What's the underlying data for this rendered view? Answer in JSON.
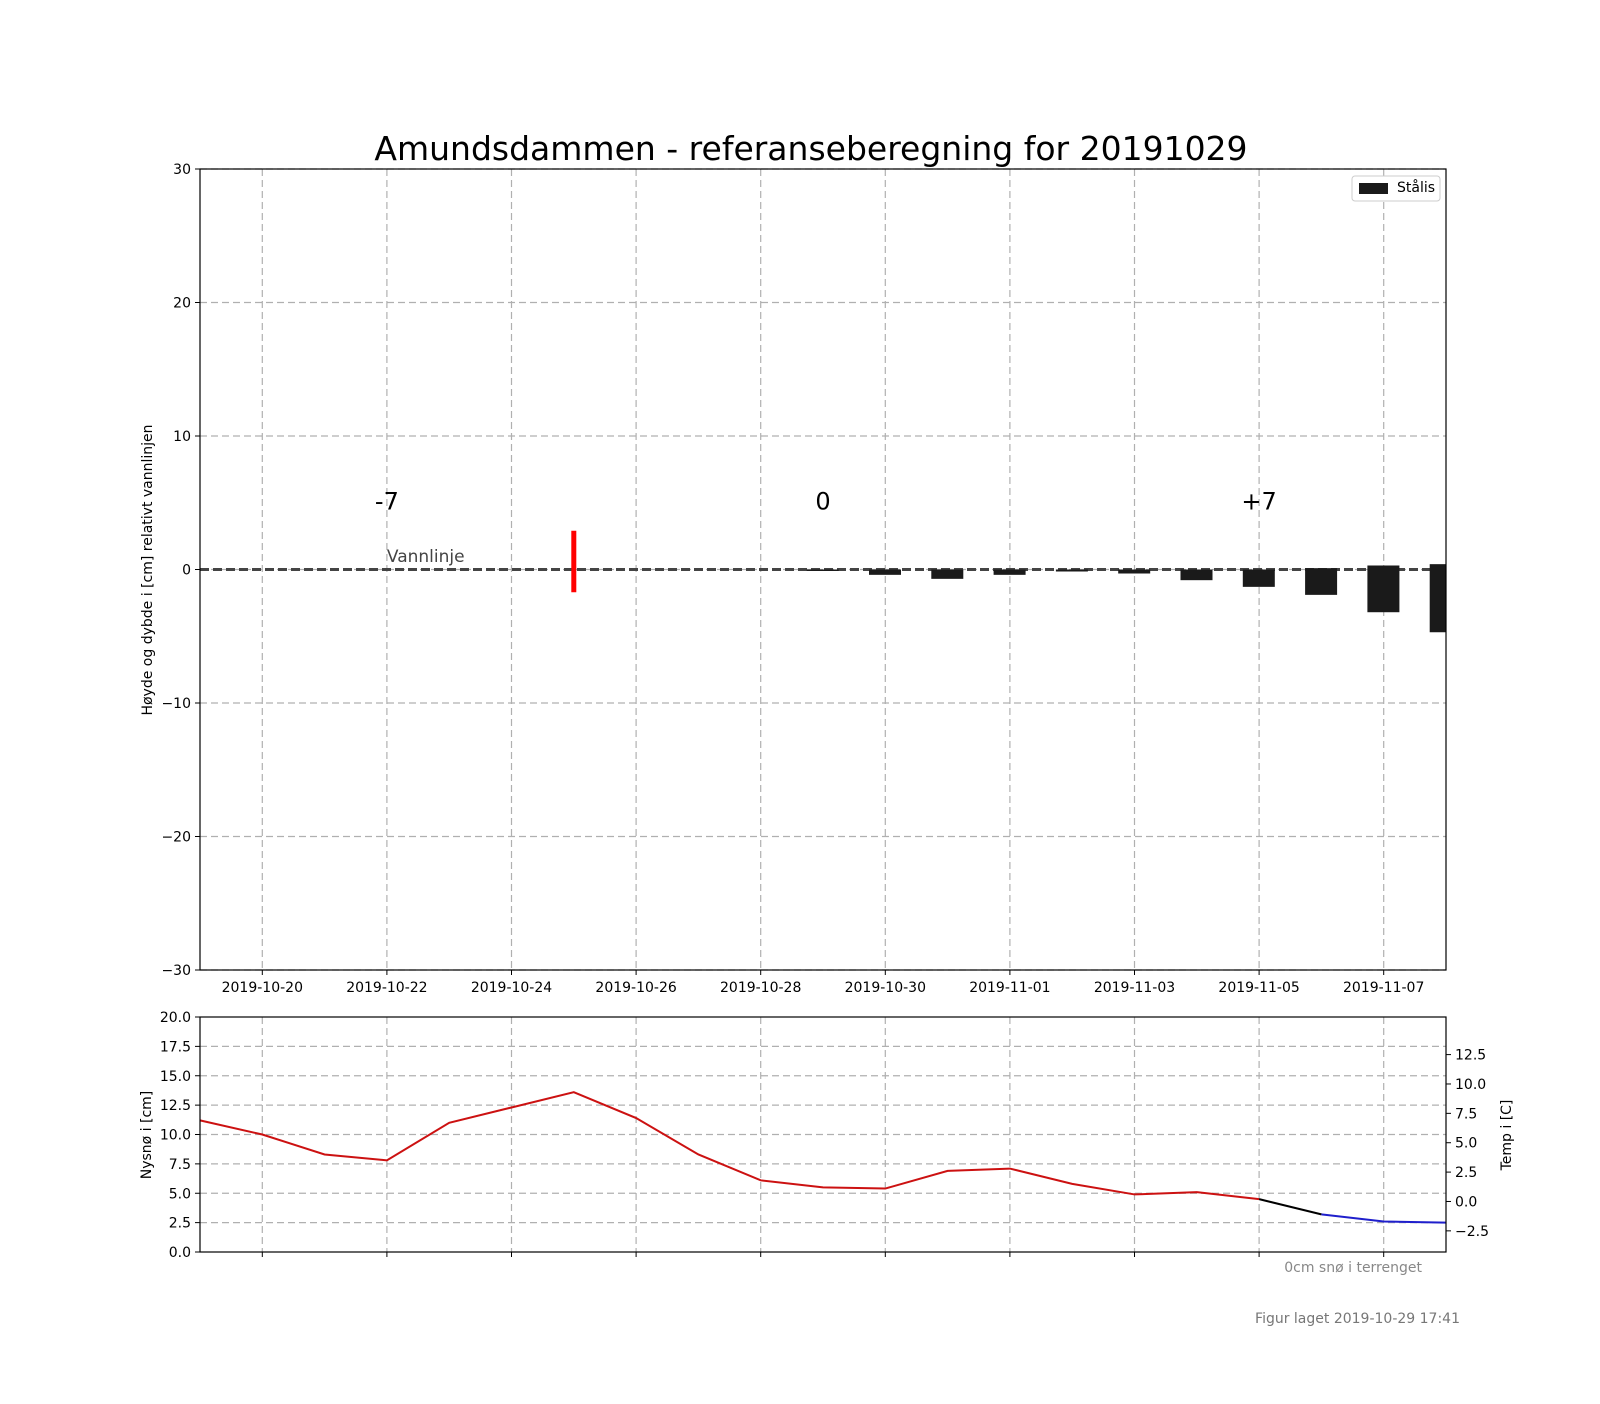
{
  "figure": {
    "footer": "Figur laget 2019-10-29 17:41",
    "snow_note": "0cm snø i terrenget"
  },
  "chart_data": [
    {
      "type": "bar",
      "title": "Amundsdammen - referanseberegning for 20191029",
      "ylabel": "Høyde og dybde i [cm] relativt vannlinjen",
      "xlabel": "",
      "xlim": [
        "2019-10-19",
        "2019-11-08"
      ],
      "ylim": [
        -30,
        30
      ],
      "yticks": [
        -30,
        -20,
        -10,
        0,
        10,
        20,
        30
      ],
      "ytick_labels": [
        "−30",
        "−20",
        "−10",
        "0",
        "10",
        "20",
        "30"
      ],
      "xticks": [
        "2019-10-20",
        "2019-10-22",
        "2019-10-24",
        "2019-10-26",
        "2019-10-28",
        "2019-10-30",
        "2019-11-01",
        "2019-11-03",
        "2019-11-05",
        "2019-11-07"
      ],
      "grid": true,
      "legend": {
        "position": "top-right",
        "entries": [
          {
            "label": "Stålis",
            "color": "#1a1a1a"
          }
        ]
      },
      "series": [
        {
          "name": "Stålis",
          "color": "#1a1a1a",
          "dates": [
            "2019-10-28",
            "2019-10-29",
            "2019-10-30",
            "2019-10-31",
            "2019-11-01",
            "2019-11-02",
            "2019-11-03",
            "2019-11-04",
            "2019-11-05",
            "2019-11-06",
            "2019-11-07",
            "2019-11-08"
          ],
          "top": [
            0,
            0,
            0,
            0,
            0,
            0,
            0,
            0,
            0.1,
            0.3,
            0.4,
            0.5
          ],
          "bottom": [
            -0.1,
            -0.4,
            -0.7,
            -0.4,
            -0.15,
            -0.3,
            -0.8,
            -1.3,
            -1.9,
            -3.2,
            -4.7,
            -6.0
          ]
        }
      ],
      "annotations": [
        {
          "text": "-7",
          "x": "2019-10-22",
          "y": 4.5
        },
        {
          "text": "0",
          "x": "2019-10-29",
          "y": 4.5
        },
        {
          "text": "+7",
          "x": "2019-11-05",
          "y": 4.5
        },
        {
          "text": "Vannlinje",
          "x": "2019-10-22",
          "y": 1.0
        }
      ],
      "waterline": {
        "y": 0,
        "color": "#444444"
      },
      "reference_marker": {
        "x": "2019-10-25",
        "y_range": [
          -1.7,
          2.9
        ],
        "color": "#ff0000"
      }
    },
    {
      "type": "line",
      "ylabel": "Nysnø i [cm]",
      "y2label": "Temp i [C]",
      "ylim": [
        0,
        20
      ],
      "yticks": [
        0,
        2.5,
        5,
        7.5,
        10,
        12.5,
        15,
        17.5,
        20
      ],
      "ytick_labels": [
        "0.0",
        "2.5",
        "5.0",
        "7.5",
        "10.0",
        "12.5",
        "15.0",
        "17.5",
        "20.0"
      ],
      "y2lim": [
        -4.3,
        15.7
      ],
      "y2ticks": [
        -2.5,
        0,
        2.5,
        5,
        7.5,
        10,
        12.5
      ],
      "y2tick_labels": [
        "−2.5",
        "0.0",
        "2.5",
        "5.0",
        "7.5",
        "10.0",
        "12.5"
      ],
      "grid": true,
      "series": [
        {
          "name": "",
          "axis": "right",
          "color": "#cc1111",
          "dates": [
            "2019-10-19",
            "2019-10-20",
            "2019-10-21",
            "2019-10-22",
            "2019-10-23",
            "2019-10-24",
            "2019-10-25",
            "2019-10-26",
            "2019-10-27",
            "2019-10-28",
            "2019-10-29",
            "2019-10-30",
            "2019-10-31",
            "2019-11-01",
            "2019-11-02",
            "2019-11-03",
            "2019-11-04",
            "2019-11-05"
          ],
          "values": [
            6.9,
            5.7,
            4.0,
            3.5,
            6.7,
            8.0,
            9.3,
            7.1,
            4.0,
            1.8,
            1.2,
            1.1,
            2.6,
            2.8,
            1.5,
            0.6,
            0.8,
            0.2
          ]
        },
        {
          "name": "",
          "axis": "right",
          "color": "#000000",
          "dates": [
            "2019-11-05",
            "2019-11-06"
          ],
          "values": [
            0.2,
            -1.1
          ]
        },
        {
          "name": "",
          "axis": "right",
          "color": "#1f1fcc",
          "dates": [
            "2019-11-06",
            "2019-11-07",
            "2019-11-08"
          ],
          "values": [
            -1.1,
            -1.7,
            -1.8
          ]
        }
      ]
    }
  ]
}
